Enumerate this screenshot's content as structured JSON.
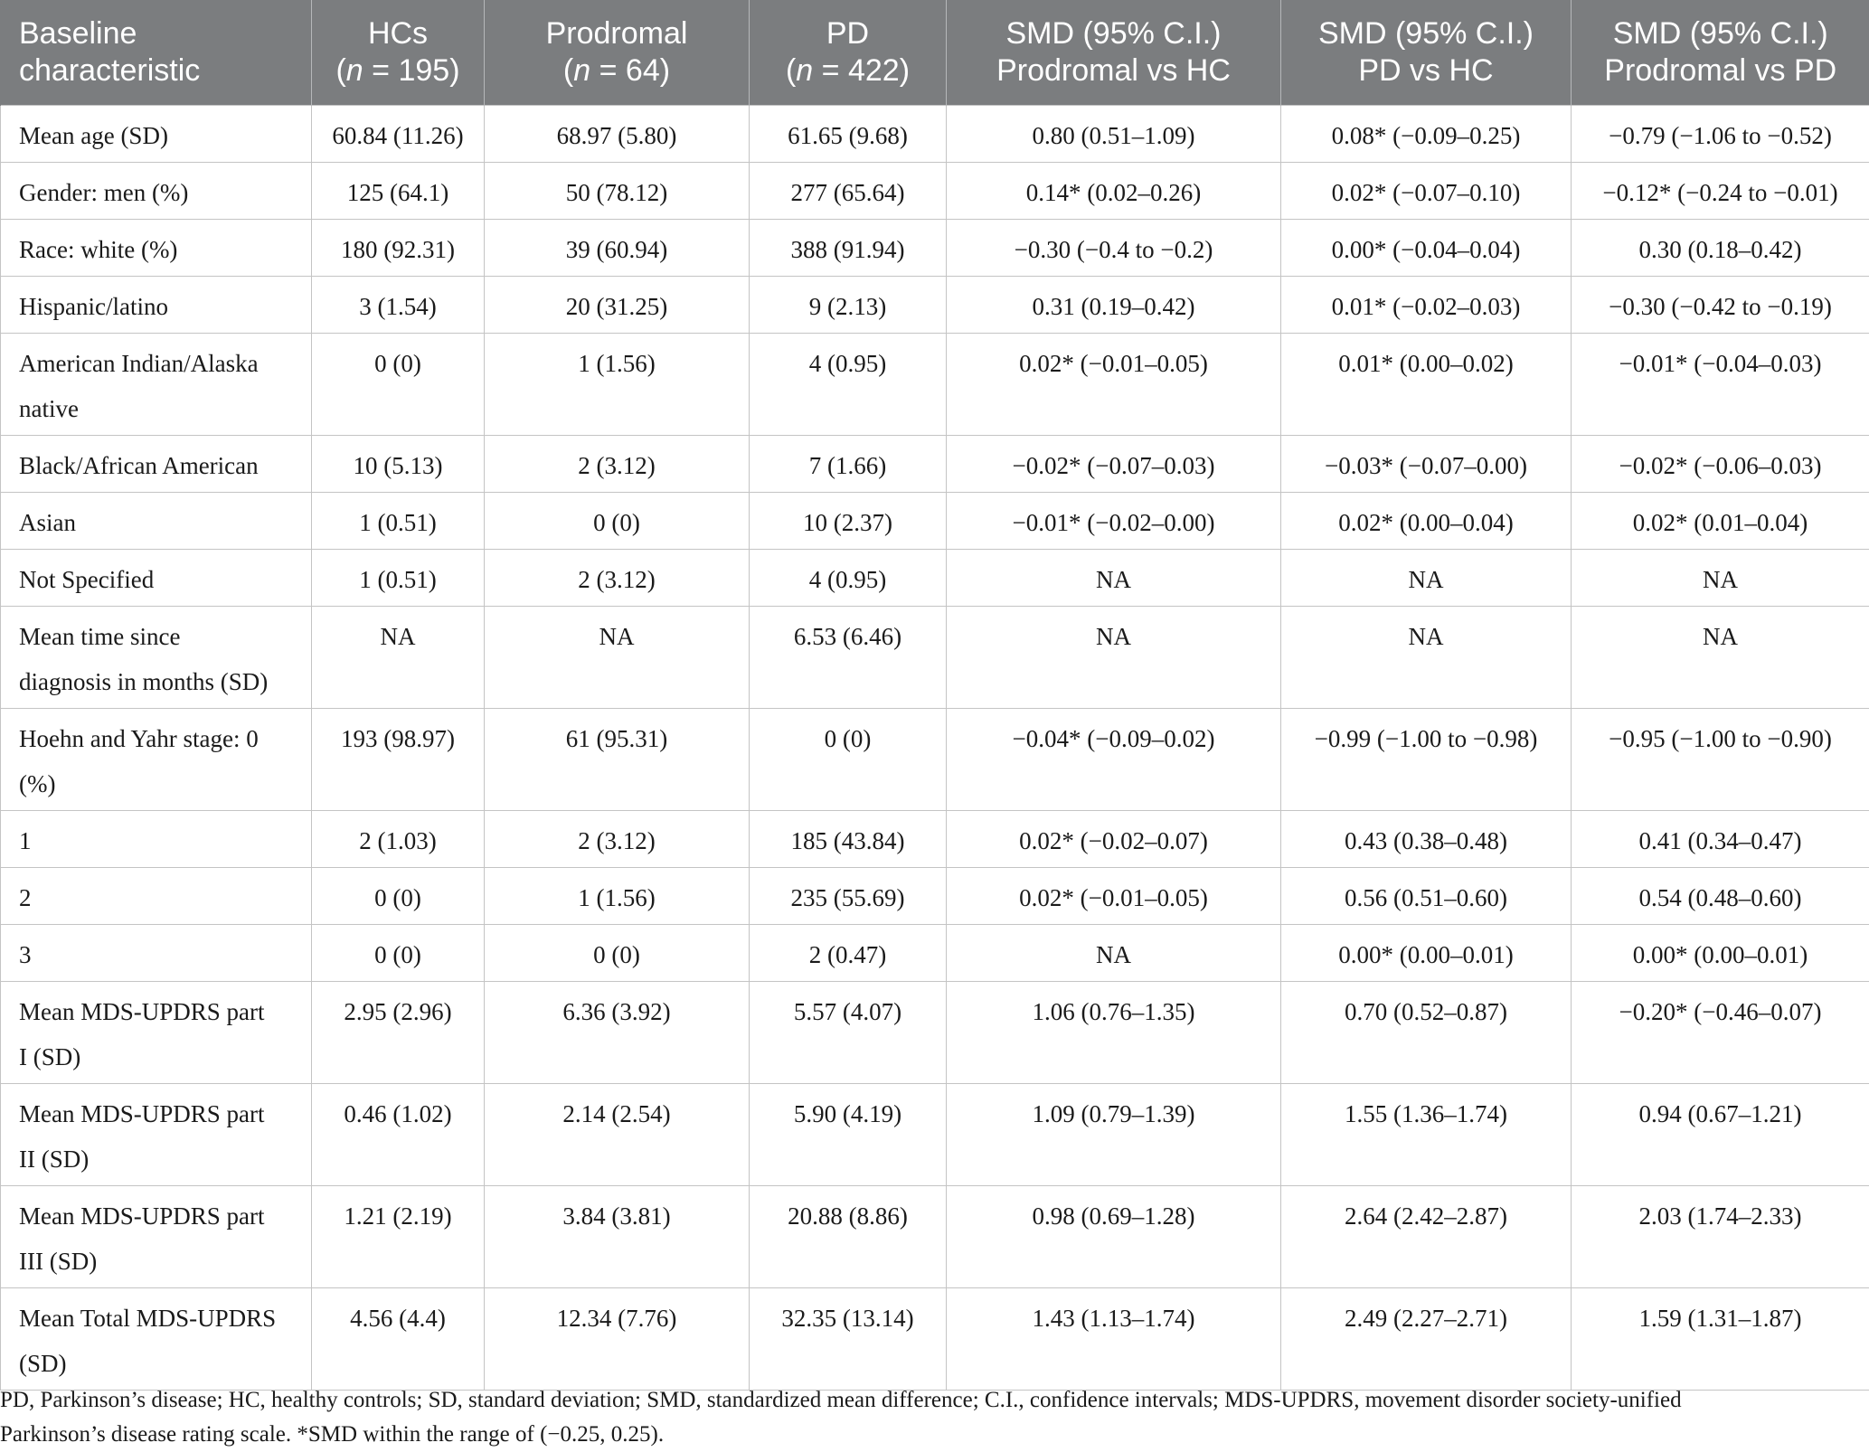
{
  "header": {
    "baseline": [
      "Baseline",
      "characteristic"
    ],
    "hcs": [
      "HCs",
      "(n = 195)"
    ],
    "prodromal": [
      "Prodromal",
      "(n = 64)"
    ],
    "pd": [
      "PD",
      "(n = 422)"
    ],
    "smd_prod_hc": [
      "SMD (95% C.I.)",
      "Prodromal vs HC"
    ],
    "smd_pd_hc": [
      "SMD (95% C.I.)",
      "PD vs HC"
    ],
    "smd_prod_pd": [
      "SMD (95% C.I.)",
      "Prodromal vs PD"
    ]
  },
  "rows": [
    {
      "label": [
        "Mean age (SD)"
      ],
      "hcs": "60.84 (11.26)",
      "prodromal": "68.97 (5.80)",
      "pd": "61.65 (9.68)",
      "smd_prod_hc": "0.80 (0.51–1.09)",
      "smd_pd_hc": "0.08* (−0.09–0.25)",
      "smd_prod_pd": "−0.79 (−1.06 to −0.52)"
    },
    {
      "label": [
        "Gender: men (%)"
      ],
      "hcs": "125 (64.1)",
      "prodromal": "50 (78.12)",
      "pd": "277 (65.64)",
      "smd_prod_hc": "0.14* (0.02–0.26)",
      "smd_pd_hc": "0.02* (−0.07–0.10)",
      "smd_prod_pd": "−0.12* (−0.24 to −0.01)"
    },
    {
      "label": [
        "Race: white (%)"
      ],
      "hcs": "180 (92.31)",
      "prodromal": "39 (60.94)",
      "pd": "388 (91.94)",
      "smd_prod_hc": "−0.30 (−0.4 to −0.2)",
      "smd_pd_hc": "0.00* (−0.04–0.04)",
      "smd_prod_pd": "0.30 (0.18–0.42)"
    },
    {
      "label": [
        "Hispanic/latino"
      ],
      "hcs": "3 (1.54)",
      "prodromal": "20 (31.25)",
      "pd": "9 (2.13)",
      "smd_prod_hc": "0.31 (0.19–0.42)",
      "smd_pd_hc": "0.01* (−0.02–0.03)",
      "smd_prod_pd": "−0.30 (−0.42 to −0.19)"
    },
    {
      "label": [
        "American Indian/Alaska",
        "native"
      ],
      "hcs": "0 (0)",
      "prodromal": "1 (1.56)",
      "pd": "4 (0.95)",
      "smd_prod_hc": "0.02* (−0.01–0.05)",
      "smd_pd_hc": "0.01* (0.00–0.02)",
      "smd_prod_pd": "−0.01* (−0.04–0.03)"
    },
    {
      "label": [
        "Black/African American"
      ],
      "hcs": "10 (5.13)",
      "prodromal": "2 (3.12)",
      "pd": "7 (1.66)",
      "smd_prod_hc": "−0.02* (−0.07–0.03)",
      "smd_pd_hc": "−0.03* (−0.07–0.00)",
      "smd_prod_pd": "−0.02* (−0.06–0.03)"
    },
    {
      "label": [
        "Asian"
      ],
      "hcs": "1 (0.51)",
      "prodromal": "0 (0)",
      "pd": "10 (2.37)",
      "smd_prod_hc": "−0.01* (−0.02–0.00)",
      "smd_pd_hc": "0.02* (0.00–0.04)",
      "smd_prod_pd": "0.02* (0.01–0.04)"
    },
    {
      "label": [
        "Not Specified"
      ],
      "hcs": "1 (0.51)",
      "prodromal": "2 (3.12)",
      "pd": "4 (0.95)",
      "smd_prod_hc": "NA",
      "smd_pd_hc": "NA",
      "smd_prod_pd": "NA"
    },
    {
      "label": [
        "Mean time since",
        "diagnosis in months (SD)"
      ],
      "hcs": "NA",
      "prodromal": "NA",
      "pd": "6.53 (6.46)",
      "smd_prod_hc": "NA",
      "smd_pd_hc": "NA",
      "smd_prod_pd": "NA"
    },
    {
      "label": [
        "Hoehn and Yahr stage: 0",
        "(%)"
      ],
      "hcs": "193 (98.97)",
      "prodromal": "61 (95.31)",
      "pd": "0 (0)",
      "smd_prod_hc": "−0.04* (−0.09–0.02)",
      "smd_pd_hc": "−0.99 (−1.00 to −0.98)",
      "smd_prod_pd": "−0.95 (−1.00 to −0.90)"
    },
    {
      "label": [
        "1"
      ],
      "hcs": "2 (1.03)",
      "prodromal": "2 (3.12)",
      "pd": "185 (43.84)",
      "smd_prod_hc": "0.02* (−0.02–0.07)",
      "smd_pd_hc": "0.43 (0.38–0.48)",
      "smd_prod_pd": "0.41 (0.34–0.47)"
    },
    {
      "label": [
        "2"
      ],
      "hcs": "0 (0)",
      "prodromal": "1 (1.56)",
      "pd": "235 (55.69)",
      "smd_prod_hc": "0.02* (−0.01–0.05)",
      "smd_pd_hc": "0.56 (0.51–0.60)",
      "smd_prod_pd": "0.54 (0.48–0.60)"
    },
    {
      "label": [
        "3"
      ],
      "hcs": "0 (0)",
      "prodromal": "0 (0)",
      "pd": "2 (0.47)",
      "smd_prod_hc": "NA",
      "smd_pd_hc": "0.00* (0.00–0.01)",
      "smd_prod_pd": "0.00* (0.00–0.01)"
    },
    {
      "label": [
        "Mean MDS-UPDRS part",
        "I (SD)"
      ],
      "hcs": "2.95 (2.96)",
      "prodromal": "6.36 (3.92)",
      "pd": "5.57 (4.07)",
      "smd_prod_hc": "1.06 (0.76–1.35)",
      "smd_pd_hc": "0.70 (0.52–0.87)",
      "smd_prod_pd": "−0.20* (−0.46–0.07)"
    },
    {
      "label": [
        "Mean MDS-UPDRS part",
        "II (SD)"
      ],
      "hcs": "0.46 (1.02)",
      "prodromal": "2.14 (2.54)",
      "pd": "5.90 (4.19)",
      "smd_prod_hc": "1.09 (0.79–1.39)",
      "smd_pd_hc": "1.55 (1.36–1.74)",
      "smd_prod_pd": "0.94 (0.67–1.21)"
    },
    {
      "label": [
        "Mean MDS-UPDRS part",
        "III (SD)"
      ],
      "hcs": "1.21 (2.19)",
      "prodromal": "3.84 (3.81)",
      "pd": "20.88 (8.86)",
      "smd_prod_hc": "0.98 (0.69–1.28)",
      "smd_pd_hc": "2.64 (2.42–2.87)",
      "smd_prod_pd": "2.03 (1.74–2.33)"
    },
    {
      "label": [
        "Mean Total MDS-UPDRS",
        "(SD)"
      ],
      "hcs": "4.56 (4.4)",
      "prodromal": "12.34 (7.76)",
      "pd": "32.35 (13.14)",
      "smd_prod_hc": "1.43 (1.13–1.74)",
      "smd_pd_hc": "2.49 (2.27–2.71)",
      "smd_prod_pd": "1.59 (1.31–1.87)"
    }
  ],
  "footnote": [
    "PD, Parkinson’s disease; HC, healthy controls; SD, standard deviation; SMD, standardized mean difference; C.I., confidence intervals; MDS-UPDRS, movement disorder society-unified",
    "Parkinson’s disease rating scale. *SMD within the range of (−0.25, 0.25)."
  ]
}
